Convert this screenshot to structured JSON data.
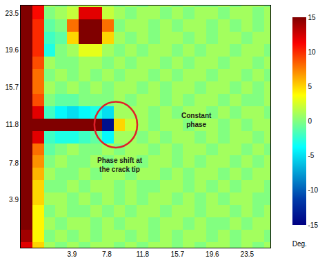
{
  "chart_data": {
    "type": "heatmap",
    "x": [
      -1.2,
      0.1,
      1.4,
      2.7,
      4.0,
      5.3,
      6.6,
      7.9,
      9.2,
      10.5,
      11.8,
      13.1,
      14.4,
      15.7,
      17.0,
      18.3,
      19.6,
      20.9,
      22.2,
      23.5,
      24.8,
      26.1
    ],
    "y": [
      -1.2,
      0.1,
      1.4,
      2.7,
      4.0,
      5.3,
      6.6,
      7.9,
      9.2,
      10.5,
      11.8,
      13.1,
      14.4,
      15.7,
      17.0,
      18.3,
      19.6,
      20.9,
      22.2,
      23.5,
      24.8
    ],
    "z": [
      [
        12,
        5,
        1,
        0,
        1,
        0,
        1,
        1,
        0,
        1,
        0,
        1,
        1,
        0,
        1,
        0,
        1,
        1,
        0,
        1,
        0,
        1
      ],
      [
        14,
        4,
        0,
        1,
        0,
        1,
        0,
        1,
        1,
        0,
        1,
        0,
        1,
        0,
        1,
        1,
        0,
        1,
        0,
        1,
        1,
        0
      ],
      [
        15,
        4,
        1,
        0,
        1,
        1,
        0,
        1,
        0,
        1,
        1,
        0,
        1,
        1,
        0,
        1,
        0,
        0,
        1,
        0,
        1,
        1
      ],
      [
        15,
        4,
        0,
        1,
        0,
        0,
        1,
        0,
        1,
        0,
        1,
        1,
        0,
        1,
        1,
        0,
        1,
        1,
        0,
        1,
        0,
        1
      ],
      [
        15,
        5,
        1,
        1,
        0,
        1,
        0,
        1,
        0,
        1,
        0,
        1,
        1,
        0,
        1,
        0,
        1,
        0,
        1,
        1,
        0,
        0
      ],
      [
        15,
        5,
        0,
        0,
        1,
        0,
        1,
        1,
        0,
        1,
        0,
        0,
        1,
        1,
        0,
        1,
        0,
        1,
        0,
        1,
        1,
        0
      ],
      [
        15,
        6,
        1,
        0,
        0,
        1,
        0,
        1,
        1,
        0,
        1,
        1,
        0,
        1,
        0,
        1,
        1,
        0,
        1,
        0,
        1,
        1
      ],
      [
        15,
        7,
        0,
        1,
        0,
        0,
        1,
        0,
        1,
        1,
        0,
        1,
        1,
        0,
        1,
        0,
        1,
        1,
        0,
        1,
        0,
        1
      ],
      [
        15,
        8,
        -1,
        0,
        1,
        0,
        0,
        1,
        0,
        1,
        1,
        0,
        1,
        0,
        1,
        1,
        0,
        1,
        1,
        0,
        1,
        0
      ],
      [
        15,
        12,
        -2,
        -3,
        -3,
        -2,
        -1,
        -4,
        1,
        1,
        0,
        1,
        0,
        1,
        1,
        0,
        1,
        0,
        1,
        1,
        0,
        1
      ],
      [
        15,
        15,
        15,
        15,
        15,
        15,
        15,
        -14,
        5,
        2,
        1,
        0,
        1,
        1,
        0,
        1,
        1,
        0,
        1,
        0,
        1,
        1
      ],
      [
        15,
        12,
        -2,
        -4,
        -5,
        -4,
        -3,
        -5,
        1,
        1,
        1,
        0,
        1,
        0,
        1,
        1,
        0,
        1,
        0,
        1,
        1,
        0
      ],
      [
        15,
        9,
        0,
        -1,
        -1,
        0,
        0,
        0,
        1,
        0,
        1,
        1,
        0,
        1,
        0,
        1,
        1,
        0,
        1,
        0,
        0,
        1
      ],
      [
        15,
        8,
        1,
        0,
        1,
        0,
        1,
        0,
        1,
        1,
        0,
        1,
        0,
        1,
        1,
        0,
        1,
        1,
        0,
        1,
        0,
        1
      ],
      [
        15,
        8,
        0,
        1,
        0,
        1,
        0,
        1,
        0,
        1,
        1,
        0,
        1,
        0,
        1,
        1,
        0,
        1,
        1,
        0,
        1,
        0
      ],
      [
        15,
        9,
        1,
        0,
        0,
        1,
        1,
        0,
        1,
        0,
        1,
        1,
        0,
        1,
        0,
        1,
        1,
        0,
        1,
        1,
        0,
        1
      ],
      [
        15,
        10,
        -3,
        0,
        1,
        3,
        3,
        1,
        0,
        1,
        0,
        1,
        1,
        0,
        1,
        0,
        1,
        1,
        0,
        1,
        1,
        0
      ],
      [
        15,
        10,
        -2,
        -1,
        5,
        15,
        15,
        5,
        1,
        0,
        1,
        0,
        1,
        1,
        0,
        1,
        0,
        1,
        1,
        0,
        1,
        1
      ],
      [
        15,
        10,
        -1,
        0,
        8,
        15,
        15,
        8,
        0,
        1,
        1,
        0,
        1,
        0,
        1,
        1,
        0,
        1,
        0,
        1,
        0,
        1
      ],
      [
        15,
        11,
        0,
        1,
        2,
        12,
        12,
        2,
        1,
        0,
        1,
        1,
        0,
        1,
        0,
        1,
        1,
        0,
        1,
        1,
        0,
        1
      ],
      [
        15,
        11,
        1,
        0,
        1,
        2,
        2,
        1,
        0,
        1,
        0,
        1,
        1,
        0,
        1,
        0,
        0,
        1,
        0,
        1,
        1,
        0
      ]
    ],
    "xlim": [
      -1.85,
      26.1
    ],
    "ylim": [
      -1.1,
      24.3
    ],
    "xticks": [
      3.9,
      7.8,
      11.8,
      15.7,
      19.6,
      23.5
    ],
    "yticks": [
      3.9,
      7.8,
      11.8,
      15.7,
      19.6,
      23.5
    ],
    "zlim": [
      -15,
      15
    ],
    "zticks": [
      -15,
      -10,
      -5,
      0,
      5,
      10,
      15
    ],
    "colorbar_title": "Deg.",
    "annotations": [
      {
        "text": [
          "Phase shift at",
          "the crack tip"
        ],
        "x": 9.3,
        "y": 7.6
      },
      {
        "text": [
          "Constant",
          "phase"
        ],
        "x": 17.8,
        "y": 12.3
      }
    ],
    "circle": {
      "x": 8.8,
      "y": 11.8,
      "r": 2.4,
      "color": "#e0202a"
    },
    "grid": false
  }
}
